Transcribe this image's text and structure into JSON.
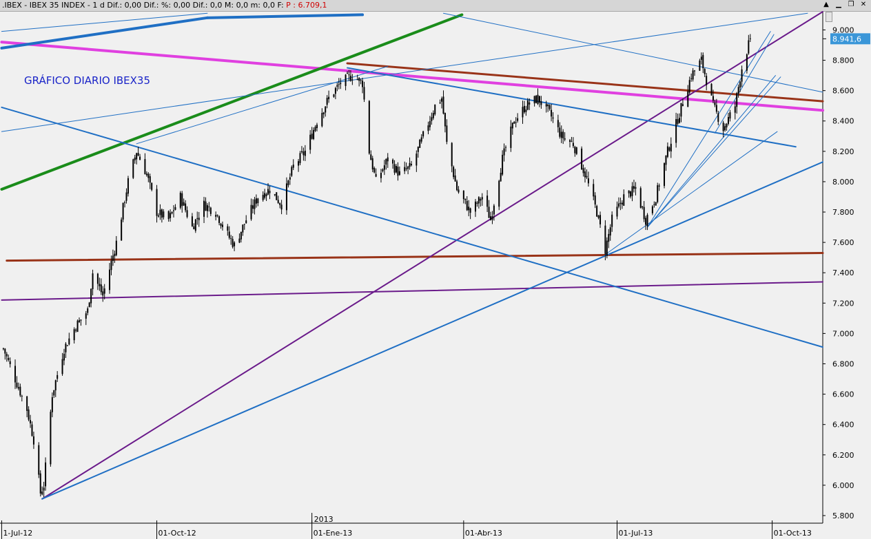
{
  "window": {
    "title_prefix": ".IBEX - IBEX 35 INDEX - 1 d  Dif.: 0,00  Dif.: %: 0,00  Dif.: 0,0  M: 0,0  m: 0,0  F:  ",
    "price_label": "P : 6.709,1",
    "buttons": [
      "▲",
      "▁",
      "❐",
      "✕"
    ]
  },
  "colors": {
    "background": "#f0f0f0",
    "candle": "#000000",
    "grid": "#c8c8c8",
    "last_price_box": "#3a96d8",
    "annotation": "#1a24c8"
  },
  "chart_data": {
    "type": "ohlc",
    "title": "GRÁFICO DIARIO IBEX35",
    "xlabel": "",
    "ylabel": "",
    "ylim": [
      5750,
      9120
    ],
    "xlim": [
      "2012-06-30",
      "2013-10-31"
    ],
    "y_ticks": [
      5800,
      6000,
      6200,
      6400,
      6600,
      6800,
      7000,
      7200,
      7400,
      7600,
      7800,
      8000,
      8200,
      8400,
      8600,
      8800,
      9000
    ],
    "y_tick_labels": [
      "5.800",
      "6.000",
      "6.200",
      "6.400",
      "6.600",
      "6.800",
      "7.000",
      "7.200",
      "7.400",
      "7.600",
      "7.800",
      "8.000",
      "8.200",
      "8.400",
      "8.600",
      "8.800",
      "9.000"
    ],
    "x_ticks": [
      {
        "date": "2012-07-01",
        "label": "1-Jul-12"
      },
      {
        "date": "2012-10-01",
        "label": "01-Oct-12"
      },
      {
        "date": "2013-01-01",
        "label": "01-Ene-13"
      },
      {
        "date": "2013-04-01",
        "label": "01-Abr-13"
      },
      {
        "date": "2013-07-01",
        "label": "01-Jul-13"
      },
      {
        "date": "2013-10-01",
        "label": "01-Oct-13"
      }
    ],
    "year_marker": {
      "date": "2013-01-01",
      "label": "2013"
    },
    "last_value": 8941.6,
    "last_value_label": "8.941,6",
    "grid": false,
    "path": [
      [
        "2012-07-02",
        6900
      ],
      [
        "2012-07-09",
        6700
      ],
      [
        "2012-07-16",
        6500
      ],
      [
        "2012-07-20",
        6300
      ],
      [
        "2012-07-24",
        5950
      ],
      [
        "2012-07-26",
        6000
      ],
      [
        "2012-07-31",
        6600
      ],
      [
        "2012-08-07",
        6900
      ],
      [
        "2012-08-14",
        7050
      ],
      [
        "2012-08-21",
        7150
      ],
      [
        "2012-08-24",
        7400
      ],
      [
        "2012-08-30",
        7250
      ],
      [
        "2012-09-07",
        7600
      ],
      [
        "2012-09-14",
        8000
      ],
      [
        "2012-09-19",
        8200
      ],
      [
        "2012-09-25",
        8050
      ],
      [
        "2012-10-01",
        7800
      ],
      [
        "2012-10-08",
        7750
      ],
      [
        "2012-10-15",
        7900
      ],
      [
        "2012-10-22",
        7700
      ],
      [
        "2012-10-29",
        7850
      ],
      [
        "2012-11-05",
        7800
      ],
      [
        "2012-11-12",
        7650
      ],
      [
        "2012-11-16",
        7580
      ],
      [
        "2012-11-23",
        7750
      ],
      [
        "2012-11-30",
        7900
      ],
      [
        "2012-12-07",
        7950
      ],
      [
        "2012-12-14",
        7850
      ],
      [
        "2012-12-21",
        8100
      ],
      [
        "2012-12-28",
        8200
      ],
      [
        "2013-01-04",
        8400
      ],
      [
        "2013-01-11",
        8550
      ],
      [
        "2013-01-18",
        8650
      ],
      [
        "2013-01-25",
        8700
      ],
      [
        "2013-01-31",
        8650
      ],
      [
        "2013-02-04",
        8200
      ],
      [
        "2013-02-08",
        8000
      ],
      [
        "2013-02-15",
        8150
      ],
      [
        "2013-02-22",
        8050
      ],
      [
        "2013-03-01",
        8100
      ],
      [
        "2013-03-08",
        8300
      ],
      [
        "2013-03-15",
        8500
      ],
      [
        "2013-03-19",
        8550
      ],
      [
        "2013-03-22",
        8250
      ],
      [
        "2013-03-28",
        7950
      ],
      [
        "2013-04-05",
        7800
      ],
      [
        "2013-04-12",
        7900
      ],
      [
        "2013-04-17",
        7750
      ],
      [
        "2013-04-24",
        8150
      ],
      [
        "2013-05-01",
        8400
      ],
      [
        "2013-05-08",
        8500
      ],
      [
        "2013-05-15",
        8550
      ],
      [
        "2013-05-22",
        8450
      ],
      [
        "2013-05-29",
        8300
      ],
      [
        "2013-06-05",
        8250
      ],
      [
        "2013-06-12",
        8050
      ],
      [
        "2013-06-19",
        7800
      ],
      [
        "2013-06-24",
        7550
      ],
      [
        "2013-06-28",
        7750
      ],
      [
        "2013-07-05",
        7900
      ],
      [
        "2013-07-12",
        7950
      ],
      [
        "2013-07-18",
        7750
      ],
      [
        "2013-07-24",
        7900
      ],
      [
        "2013-07-31",
        8200
      ],
      [
        "2013-08-07",
        8450
      ],
      [
        "2013-08-14",
        8700
      ],
      [
        "2013-08-20",
        8800
      ],
      [
        "2013-08-27",
        8500
      ],
      [
        "2013-09-02",
        8350
      ],
      [
        "2013-09-09",
        8500
      ],
      [
        "2013-09-13",
        8750
      ],
      [
        "2013-09-18",
        8941.6
      ]
    ],
    "trendlines": [
      {
        "color": "#e040e0",
        "width": 4,
        "from": [
          "2012-07-01",
          8920
        ],
        "to": [
          "2013-10-31",
          8470
        ]
      },
      {
        "color": "#1a8c1a",
        "width": 4,
        "from": [
          "2012-07-01",
          7950
        ],
        "to": [
          "2013-03-31",
          9100
        ]
      },
      {
        "color": "#1f6fc4",
        "width": 4,
        "from": [
          "2012-07-01",
          8880
        ],
        "to": [
          "2012-10-31",
          9080
        ]
      },
      {
        "color": "#1f6fc4",
        "width": 4,
        "from": [
          "2012-10-31",
          9080
        ],
        "to": [
          "2013-01-31",
          9100
        ]
      },
      {
        "color": "#993318",
        "width": 3,
        "from": [
          "2012-07-04",
          7480
        ],
        "to": [
          "2013-10-31",
          7530
        ]
      },
      {
        "color": "#993318",
        "width": 3,
        "from": [
          "2013-01-22",
          8780
        ],
        "to": [
          "2013-10-31",
          8530
        ]
      },
      {
        "color": "#6a1a8a",
        "width": 2,
        "from": [
          "2012-07-01",
          7220
        ],
        "to": [
          "2013-10-31",
          7340
        ]
      },
      {
        "color": "#6a1a8a",
        "width": 2,
        "from": [
          "2012-07-25",
          5910
        ],
        "to": [
          "2013-10-31",
          9120
        ]
      },
      {
        "color": "#1f6fc4",
        "width": 2,
        "from": [
          "2012-07-25",
          5910
        ],
        "to": [
          "2013-10-31",
          8130
        ]
      },
      {
        "color": "#1f6fc4",
        "width": 2,
        "from": [
          "2012-07-01",
          8490
        ],
        "to": [
          "2013-10-31",
          6910
        ]
      },
      {
        "color": "#1f6fc4",
        "width": 2,
        "from": [
          "2013-01-22",
          8750
        ],
        "to": [
          "2013-10-15",
          8230
        ]
      },
      {
        "color": "#1f6fc4",
        "width": 1,
        "from": [
          "2012-07-01",
          8330
        ],
        "to": [
          "2013-10-22",
          9110
        ]
      },
      {
        "color": "#1f6fc4",
        "width": 1,
        "from": [
          "2012-07-01",
          8990
        ],
        "to": [
          "2012-10-31",
          9110
        ]
      },
      {
        "color": "#1f6fc4",
        "width": 1,
        "from": [
          "2012-09-19",
          8250
        ],
        "to": [
          "2013-02-15",
          8760
        ]
      },
      {
        "color": "#1f6fc4",
        "width": 1,
        "from": [
          "2013-03-20",
          9110
        ],
        "to": [
          "2013-10-31",
          8590
        ]
      },
      {
        "color": "#1f6fc4",
        "width": 1,
        "from": [
          "2013-06-24",
          7520
        ],
        "to": [
          "2013-10-04",
          8330
        ]
      },
      {
        "color": "#1f6fc4",
        "width": 1,
        "from": [
          "2013-07-19",
          7700
        ],
        "to": [
          "2013-09-30",
          8990
        ]
      },
      {
        "color": "#1f6fc4",
        "width": 1,
        "from": [
          "2013-07-19",
          7700
        ],
        "to": [
          "2013-10-06",
          8690
        ]
      },
      {
        "color": "#1f6fc4",
        "width": 1,
        "from": [
          "2013-07-19",
          7700
        ],
        "to": [
          "2013-10-03",
          8700
        ]
      },
      {
        "color": "#1f6fc4",
        "width": 1,
        "from": [
          "2013-08-28",
          8320
        ],
        "to": [
          "2013-10-02",
          8970
        ]
      }
    ]
  }
}
